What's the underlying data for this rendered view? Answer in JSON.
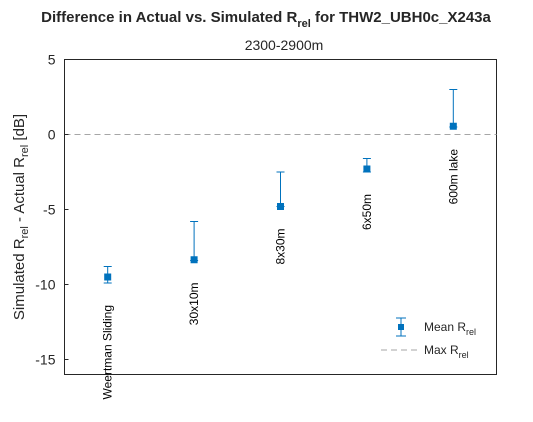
{
  "chart_data": {
    "type": "scatter",
    "title": {
      "main": "Difference in Actual vs. Simulated R",
      "sub": "rel",
      "rest": " for THW2_UBH0c_X243a"
    },
    "subtitle": "2300-2900m",
    "ylabel": {
      "p1": "Simulated R",
      "s1": "rel",
      "p2": " - Actual R",
      "s2": "rel",
      "p3": " [dB]"
    },
    "xlabel": "",
    "ylim": [
      -16,
      5
    ],
    "yticks": [
      "5",
      "0",
      "-5",
      "-10",
      "-15"
    ],
    "ytick_values": [
      5,
      0,
      -5,
      -10,
      -15
    ],
    "xlim": [
      0.5,
      5.5
    ],
    "categories": [
      "Weertman Sliding",
      "30x10m",
      "8x30m",
      "6x50m",
      "600m lake"
    ],
    "mean": [
      -9.5,
      -8.35,
      -4.8,
      -2.3,
      0.55
    ],
    "err_low": [
      -9.9,
      -8.4,
      -4.8,
      -2.5,
      0.5
    ],
    "err_high": [
      -8.8,
      -5.8,
      -2.5,
      -1.6,
      3.0
    ],
    "reference_line_y": 0,
    "legend": [
      {
        "marker": "errorbar-square",
        "p": "Mean R",
        "s": "rel"
      },
      {
        "marker": "dashed-line",
        "p": "Max R",
        "s": "rel"
      }
    ],
    "legend_position": "bottom-right",
    "grid": false,
    "colors": {
      "series": "#0072BD",
      "reference": "#a6a6a6",
      "axis": "#262626",
      "text": "#262626"
    }
  }
}
